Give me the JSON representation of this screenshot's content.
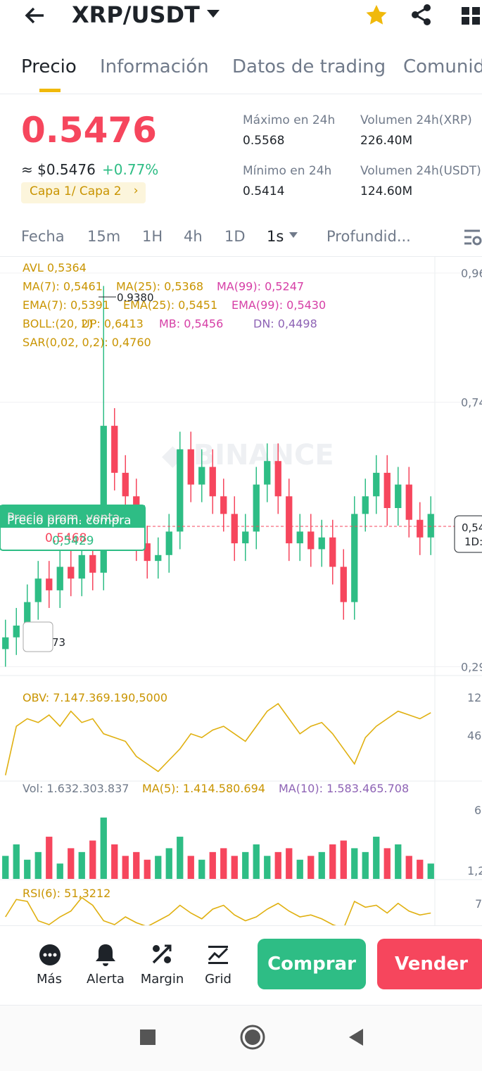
{
  "header": {
    "pair": "XRP/USDT"
  },
  "tabs": [
    "Precio",
    "Información",
    "Datos de trading",
    "Comunid"
  ],
  "ticker": {
    "price": "0.5476",
    "usd": "≈ $0.5476",
    "change": "+0.77%",
    "tag": "Capa 1/ Capa 2",
    "stats": [
      {
        "label": "Máximo en 24h",
        "value": "0.5568"
      },
      {
        "label": "Volumen 24h(XRP)",
        "value": "226.40M"
      },
      {
        "label": "Mínimo en 24h",
        "value": "0.5414"
      },
      {
        "label": "Volumen 24h(USDT)",
        "value": "124.60M"
      }
    ]
  },
  "intervals": [
    "Fecha",
    "15m",
    "1H",
    "4h",
    "1D",
    "1s",
    "Profundid..."
  ],
  "chart": {
    "indicators": [
      [
        "AVL 0,5364"
      ],
      [
        "MA(7): 0,5461",
        "MA(25): 0,5368",
        "MA(99): 0,5247"
      ],
      [
        "EMA(7): 0,5391",
        "EMA(25): 0,5451",
        "EMA(99): 0,5430"
      ],
      [
        "BOLL:(20, 2)",
        "UP: 0,6413",
        "MB: 0,5456",
        "DN: 0,4498"
      ],
      [
        "SAR(0,02, 0,2): 0,4760"
      ]
    ],
    "high_label": "0.9380",
    "low_label": "73",
    "price_box": [
      "0,54",
      "1D:"
    ],
    "avg_sell": "Precio prom. venta",
    "avg_buy": "Precio prom. compra",
    "avg_sell_value": "0,5468",
    "avg_buy_value": "0,5429",
    "ylim": [
      0.275,
      0.9875
    ],
    "yticks": [
      {
        "value": 0.96,
        "label": "0,96"
      },
      {
        "value": 0.74,
        "label": "0,74"
      },
      {
        "value": 0.29,
        "label": "0,29"
      }
    ],
    "open": [
      0.32,
      0.34,
      0.36,
      0.4,
      0.44,
      0.42,
      0.46,
      0.44,
      0.48,
      0.45,
      0.7,
      0.62,
      0.58,
      0.5,
      0.47,
      0.48,
      0.52,
      0.66,
      0.6,
      0.63,
      0.58,
      0.55,
      0.5,
      0.52,
      0.6,
      0.64,
      0.58,
      0.5,
      0.52,
      0.49,
      0.51,
      0.46,
      0.4,
      0.55,
      0.58,
      0.62,
      0.56,
      0.6,
      0.54,
      0.51
    ],
    "close": [
      0.34,
      0.36,
      0.4,
      0.44,
      0.42,
      0.46,
      0.44,
      0.48,
      0.45,
      0.7,
      0.62,
      0.58,
      0.5,
      0.47,
      0.48,
      0.52,
      0.66,
      0.6,
      0.63,
      0.58,
      0.55,
      0.5,
      0.52,
      0.6,
      0.64,
      0.58,
      0.5,
      0.52,
      0.49,
      0.51,
      0.46,
      0.4,
      0.55,
      0.58,
      0.62,
      0.56,
      0.6,
      0.54,
      0.51,
      0.55
    ],
    "high": [
      0.37,
      0.39,
      0.43,
      0.47,
      0.47,
      0.49,
      0.49,
      0.51,
      0.51,
      0.938,
      0.73,
      0.65,
      0.61,
      0.53,
      0.51,
      0.55,
      0.69,
      0.69,
      0.66,
      0.66,
      0.61,
      0.58,
      0.55,
      0.63,
      0.67,
      0.67,
      0.61,
      0.55,
      0.55,
      0.54,
      0.54,
      0.49,
      0.58,
      0.61,
      0.65,
      0.65,
      0.63,
      0.63,
      0.57,
      0.58
    ],
    "low": [
      0.29,
      0.31,
      0.33,
      0.37,
      0.39,
      0.39,
      0.41,
      0.41,
      0.42,
      0.42,
      0.59,
      0.55,
      0.47,
      0.44,
      0.44,
      0.45,
      0.49,
      0.57,
      0.57,
      0.55,
      0.52,
      0.47,
      0.47,
      0.49,
      0.57,
      0.55,
      0.47,
      0.47,
      0.46,
      0.46,
      0.43,
      0.37,
      0.37,
      0.52,
      0.55,
      0.53,
      0.53,
      0.51,
      0.48,
      0.48
    ]
  },
  "obv": {
    "label": "OBV: 7.147.369.190,5000",
    "axis_labels": [
      "12",
      "46"
    ],
    "ylim": [
      0,
      100
    ],
    "values": [
      5,
      70,
      80,
      75,
      85,
      70,
      90,
      75,
      80,
      60,
      55,
      50,
      30,
      20,
      10,
      25,
      40,
      60,
      55,
      65,
      70,
      60,
      50,
      70,
      90,
      100,
      80,
      60,
      70,
      75,
      60,
      40,
      20,
      55,
      70,
      80,
      90,
      85,
      80,
      88
    ]
  },
  "volume": {
    "labels": [
      "Vol: 1.632.303.837",
      "MA(5): 1.414.580.694",
      "MA(10): 1.583.465.708"
    ],
    "axis_labels": [
      "6",
      "1,2"
    ],
    "ylim": [
      0,
      100
    ],
    "values": [
      30,
      45,
      25,
      35,
      55,
      20,
      40,
      35,
      50,
      80,
      45,
      30,
      35,
      25,
      30,
      40,
      55,
      30,
      25,
      35,
      40,
      30,
      35,
      45,
      30,
      35,
      40,
      25,
      30,
      35,
      45,
      50,
      40,
      35,
      55,
      40,
      45,
      30,
      25,
      20
    ]
  },
  "rsi": {
    "label": "RSI(6): 51,3212",
    "axis_labels": [
      "7"
    ],
    "ylim": [
      0,
      100
    ],
    "values": [
      40,
      85,
      80,
      30,
      20,
      40,
      55,
      90,
      70,
      30,
      20,
      40,
      25,
      15,
      30,
      45,
      70,
      50,
      35,
      60,
      70,
      45,
      30,
      40,
      60,
      75,
      55,
      40,
      45,
      35,
      20,
      10,
      80,
      65,
      70,
      50,
      75,
      55,
      45,
      50
    ]
  },
  "actions": [
    "Más",
    "Alerta",
    "Margin",
    "Grid"
  ],
  "buy": "Comprar",
  "sell": "Vender"
}
